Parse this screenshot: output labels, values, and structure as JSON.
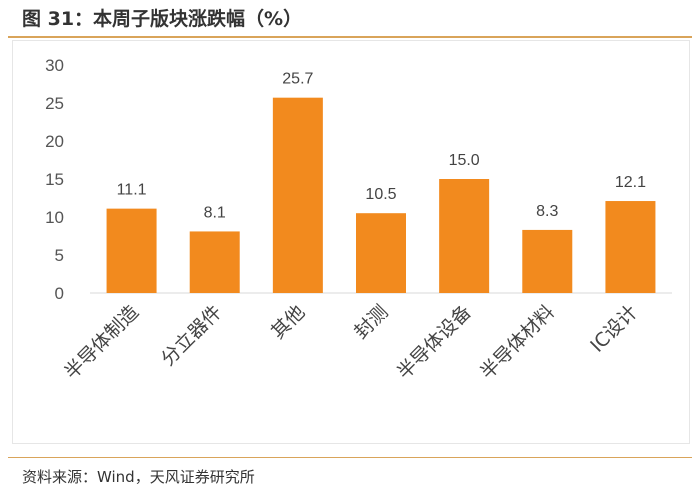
{
  "title": "图 31：本周子版块涨跌幅（%）",
  "source": "资料来源：Wind，天风证券研究所",
  "chart_data": {
    "type": "bar",
    "title": "本周子版块涨跌幅（%）",
    "categories": [
      "半导体制造",
      "分立器件",
      "其他",
      "封测",
      "半导体设备",
      "半导体材料",
      "IC设计"
    ],
    "values": [
      11.1,
      8.1,
      25.7,
      10.5,
      15.0,
      8.3,
      12.1
    ],
    "data_labels": [
      "11.1",
      "8.1",
      "25.7",
      "10.5",
      "15.0",
      "8.3",
      "12.1"
    ],
    "yticks": [
      "0",
      "5",
      "10",
      "15",
      "20",
      "25",
      "30"
    ],
    "ylim": [
      0,
      30
    ],
    "xlabel": "",
    "ylabel": "",
    "grid": false,
    "bar_color": "#f28a1e"
  }
}
